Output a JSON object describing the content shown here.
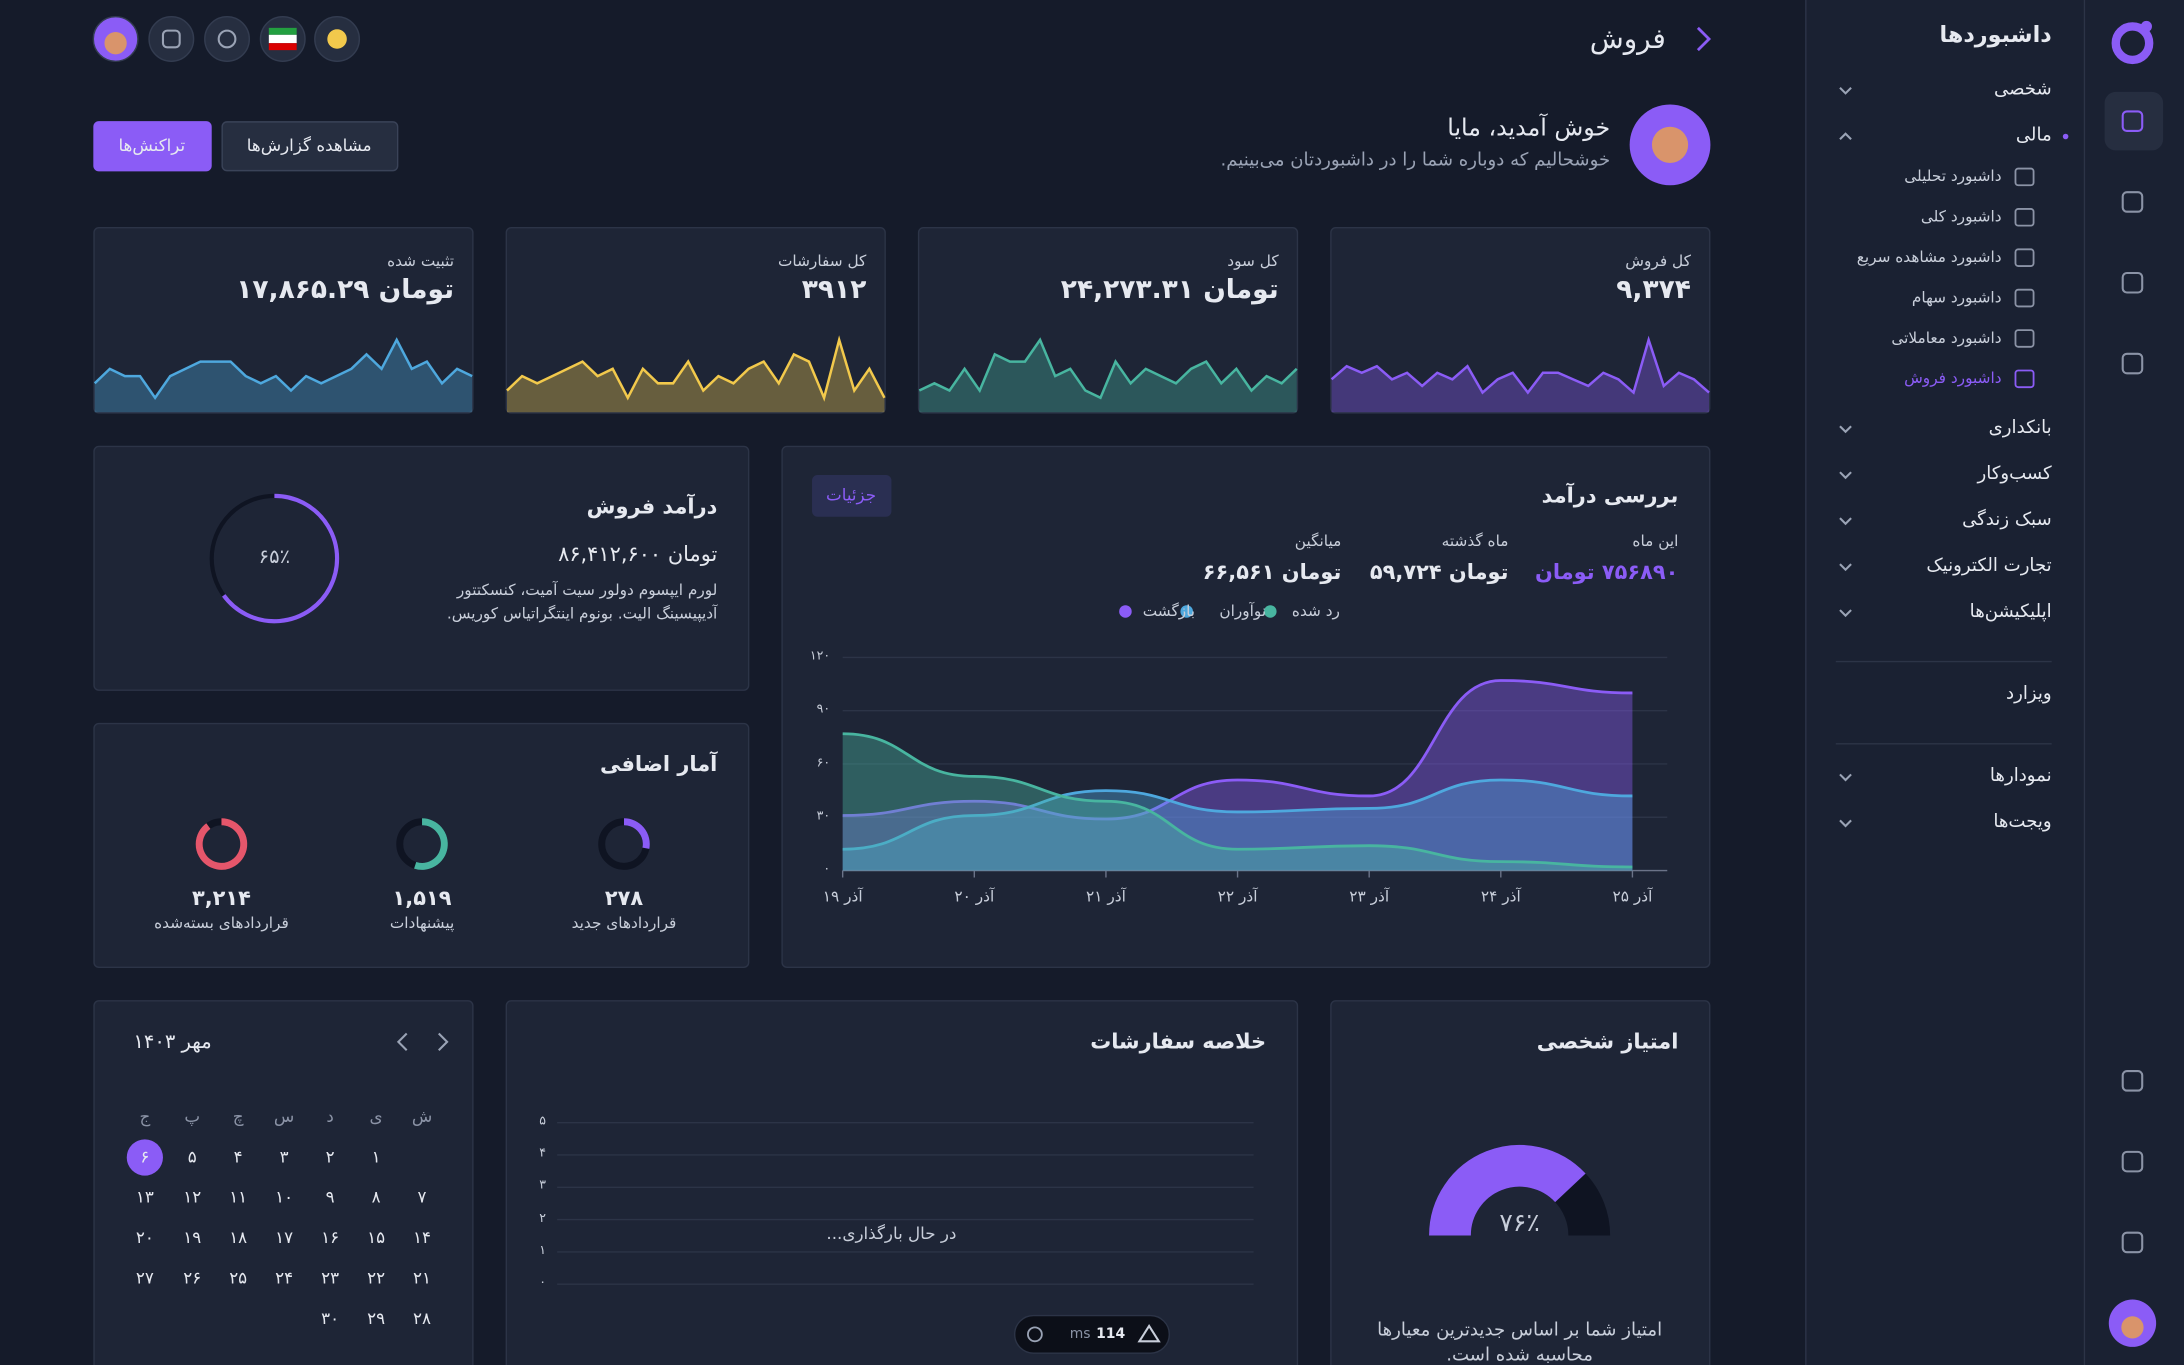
{
  "sidebar": {
    "title": "داشبوردها",
    "sections": [
      [
        {
          "label": "شخصی",
          "expandable": true
        },
        {
          "label": "مالی",
          "expandable": true,
          "expanded": true,
          "children": [
            {
              "label": "داشبورد تحلیلی"
            },
            {
              "label": "داشبورد کلی"
            },
            {
              "label": "داشبورد مشاهده سریع"
            },
            {
              "label": "داشبورد سهام"
            },
            {
              "label": "داشبورد معاملاتی"
            },
            {
              "label": "داشبورد فروش",
              "active": true
            }
          ]
        },
        {
          "label": "بانکداری",
          "expandable": true
        },
        {
          "label": "کسب‌وکار",
          "expandable": true
        },
        {
          "label": "سبک زندگی",
          "expandable": true
        },
        {
          "label": "تجارت الکترونیک",
          "expandable": true
        },
        {
          "label": "اپلیکیشن‌ها",
          "expandable": true
        }
      ],
      [
        {
          "label": "ویزارد",
          "expandable": false
        }
      ],
      [
        {
          "label": "نمودارها",
          "expandable": true
        },
        {
          "label": "ویجت‌ها",
          "expandable": true
        }
      ]
    ]
  },
  "header": {
    "title": "فروش"
  },
  "welcome": {
    "title": "خوش آمدید، مایا",
    "subtitle": "خوشحالیم که دوباره شما را در داشبوردتان می‌بینیم.",
    "buttons": [
      "تراکنش‌ها",
      "مشاهده گزارش‌ها"
    ]
  },
  "stats": [
    {
      "label": "کل فروش",
      "value": "۹,۳۷۴",
      "color": "#8b5cf6",
      "spark": [
        5,
        7,
        6,
        7,
        5,
        6,
        4,
        6,
        5,
        7,
        3,
        5,
        6,
        3,
        6,
        6,
        5,
        4,
        6,
        5,
        3,
        11,
        4,
        6,
        5,
        3
      ]
    },
    {
      "label": "کل سود",
      "value": "تومان ۲۴,۲۷۳.۳۱",
      "color": "#48b5a0",
      "spark": [
        3,
        4,
        3,
        6,
        3,
        8,
        7,
        7,
        10,
        5,
        6,
        3,
        2,
        7,
        4,
        6,
        5,
        4,
        6,
        7,
        4,
        6,
        3,
        5,
        4,
        6
      ]
    },
    {
      "label": "کل سفارشات",
      "value": "۳۹۱۲",
      "color": "#f2c94c",
      "spark": [
        3,
        5,
        4,
        5,
        6,
        7,
        5,
        6,
        2,
        6,
        4,
        4,
        7,
        3,
        5,
        4,
        6,
        7,
        4,
        8,
        7,
        2,
        10,
        3,
        6,
        2
      ]
    },
    {
      "label": "تثبیت شده",
      "value": "تومان ۱۷,۸۶۵.۲۹",
      "color": "#4ea8de",
      "spark": [
        4,
        6,
        5,
        5,
        2,
        5,
        6,
        7,
        7,
        7,
        5,
        4,
        5,
        3,
        5,
        4,
        5,
        6,
        8,
        6,
        10,
        6,
        7,
        4,
        6,
        5
      ]
    }
  ],
  "sales_income": {
    "title": "درآمد فروش",
    "amount": "تومان ۸۶,۴۱۲,۶۰۰",
    "description": [
      "لورم ایپسوم دولور سیت آمیت، کنسکتتور",
      "آدیپیسینگ الیت. بونوم اینتگراتیاس کوریس."
    ],
    "percent": {
      "value": 65,
      "label": "۶۵٪"
    }
  },
  "extra_stats": {
    "title": "آمار اضافی",
    "items": [
      {
        "value": "۲۷۸",
        "label": "قراردادهای جدید"
      },
      {
        "value": "۱,۵۱۹",
        "label": "پیشنهادات"
      },
      {
        "value": "۳,۲۱۴",
        "label": "قراردادهای بسته‌شده"
      }
    ]
  },
  "revenue": {
    "title": "بررسی درآمد",
    "button": "جزئیات",
    "metrics": [
      {
        "label": "این ماه",
        "value": "۷۵۶۸۹۰ تومان"
      },
      {
        "label": "ماه گذشته",
        "value": "تومان ۵۹,۷۲۴"
      },
      {
        "label": "میانگین",
        "value": "تومان ۶۶,۵۶۱"
      }
    ],
    "chart_data": {
      "type": "area",
      "categories": [
        "آذر ۱۹",
        "آذر ۲۰",
        "آذر ۲۱",
        "آذر ۲۲",
        "آذر ۲۳",
        "آذر ۲۴",
        "آذر ۲۵"
      ],
      "series": [
        {
          "name": "رد شده",
          "color": "#48b5a0",
          "values": [
            77,
            53,
            39,
            12,
            14,
            5,
            2
          ]
        },
        {
          "name": "نوآوران",
          "color": "#4ea8de",
          "values": [
            12,
            31,
            45,
            33,
            35,
            51,
            42
          ]
        },
        {
          "name": "بازگشت",
          "color": "#8b5cf6",
          "values": [
            31,
            39,
            29,
            51,
            42,
            107,
            100
          ]
        }
      ],
      "ylim": [
        0,
        120
      ],
      "yticks": [
        {
          "value": 0,
          "label": "۰"
        },
        {
          "value": 30,
          "label": "۳۰"
        },
        {
          "value": 60,
          "label": "۶۰"
        },
        {
          "value": 90,
          "label": "۹۰"
        },
        {
          "value": 120,
          "label": "۱۲۰"
        }
      ],
      "grid": true
    }
  },
  "calendar": {
    "month": "مهر ۱۴۰۳",
    "weekdays": [
      "ش",
      "ی",
      "د",
      "س",
      "چ",
      "پ",
      "ج"
    ],
    "weeks": [
      [
        null,
        "۱",
        "۲",
        "۳",
        "۴",
        "۵",
        "۶"
      ],
      [
        "۷",
        "۸",
        "۹",
        "۱۰",
        "۱۱",
        "۱۲",
        "۱۳"
      ],
      [
        "۱۴",
        "۱۵",
        "۱۶",
        "۱۷",
        "۱۸",
        "۱۹",
        "۲۰"
      ],
      [
        "۲۱",
        "۲۲",
        "۲۳",
        "۲۴",
        "۲۵",
        "۲۶",
        "۲۷"
      ],
      [
        "۲۸",
        "۲۹",
        "۳۰"
      ]
    ],
    "selected": {
      "week": 0,
      "day": 6
    }
  },
  "orders": {
    "title": "خلاصه سفارشات",
    "loading": "در حال بارگذاری...",
    "chart_data": {
      "type": "bar",
      "ylim": [
        0,
        5
      ],
      "yticks": [
        {
          "value": 0,
          "label": "۰"
        },
        {
          "value": 1,
          "label": "۱"
        },
        {
          "value": 2,
          "label": "۲"
        },
        {
          "value": 3,
          "label": "۳"
        },
        {
          "value": 4,
          "label": "۴"
        },
        {
          "value": 5,
          "label": "۵"
        }
      ],
      "grid": true
    }
  },
  "score": {
    "title": "امتیاز شخصی",
    "percent": {
      "value": 76,
      "label": "۷۶٪"
    },
    "description": [
      "امتیاز شما بر اساس جدیدترین معیارها",
      "محاسبه شده است."
    ]
  },
  "devtools": {
    "time": "114",
    "unit": "ms"
  }
}
